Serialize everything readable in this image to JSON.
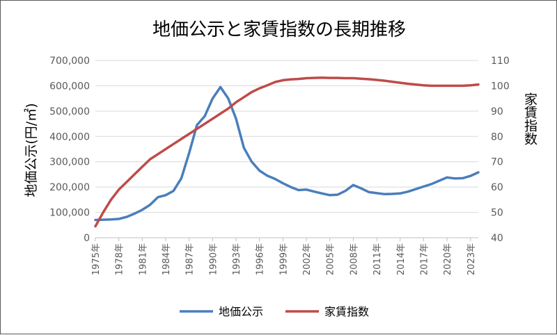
{
  "chart_data": {
    "type": "line",
    "title": "地価公示と家賃指数の長期推移",
    "ylabel_left": "地価公示(円/㎡)",
    "ylabel_right": "家賃指数",
    "xlabel": "",
    "ylim_left": [
      0,
      700000
    ],
    "ylim_right": [
      40,
      110
    ],
    "yticks_left": [
      "0",
      "100,000",
      "200,000",
      "300,000",
      "400,000",
      "500,000",
      "600,000",
      "700,000"
    ],
    "yticks_right": [
      "40",
      "50",
      "60",
      "70",
      "80",
      "90",
      "100",
      "110"
    ],
    "grid": "horizontal",
    "legend_position": "bottom",
    "x_tick_labels": [
      "1975年",
      "1978年",
      "1981年",
      "1984年",
      "1987年",
      "1990年",
      "1993年",
      "1996年",
      "1999年",
      "2002年",
      "2005年",
      "2008年",
      "2011年",
      "2014年",
      "2017年",
      "2020年",
      "2023年"
    ],
    "x": [
      1975,
      1976,
      1977,
      1978,
      1979,
      1980,
      1981,
      1982,
      1983,
      1984,
      1985,
      1986,
      1987,
      1988,
      1989,
      1990,
      1991,
      1992,
      1993,
      1994,
      1995,
      1996,
      1997,
      1998,
      1999,
      2000,
      2001,
      2002,
      2003,
      2004,
      2005,
      2006,
      2007,
      2008,
      2009,
      2010,
      2011,
      2012,
      2013,
      2014,
      2015,
      2016,
      2017,
      2018,
      2019,
      2020,
      2021,
      2022,
      2023,
      2024
    ],
    "series": [
      {
        "name": "地価公示",
        "axis": "left",
        "color": "#4a7ebb",
        "values": [
          70000,
          71000,
          72000,
          74000,
          82000,
          95000,
          110000,
          130000,
          160000,
          168000,
          185000,
          235000,
          335000,
          445000,
          480000,
          550000,
          595000,
          550000,
          470000,
          355000,
          300000,
          265000,
          245000,
          232000,
          215000,
          200000,
          188000,
          190000,
          182000,
          175000,
          168000,
          170000,
          185000,
          208000,
          195000,
          180000,
          176000,
          172000,
          173000,
          175000,
          182000,
          192000,
          202000,
          212000,
          225000,
          238000,
          234000,
          235000,
          244000,
          258000
        ]
      },
      {
        "name": "家賃指数",
        "axis": "right",
        "color": "#be4b48",
        "values": [
          44.5,
          50,
          55,
          59,
          62,
          65,
          68,
          71,
          73,
          75,
          77,
          79,
          81,
          83,
          85,
          87,
          89,
          91,
          93.5,
          95.5,
          97.5,
          99,
          100.2,
          101.5,
          102.2,
          102.5,
          102.7,
          103,
          103.1,
          103.2,
          103.1,
          103.1,
          103,
          103,
          102.8,
          102.6,
          102.3,
          102,
          101.6,
          101.2,
          100.8,
          100.5,
          100.2,
          100,
          100,
          100,
          100,
          100,
          100.2,
          100.5
        ]
      }
    ]
  }
}
